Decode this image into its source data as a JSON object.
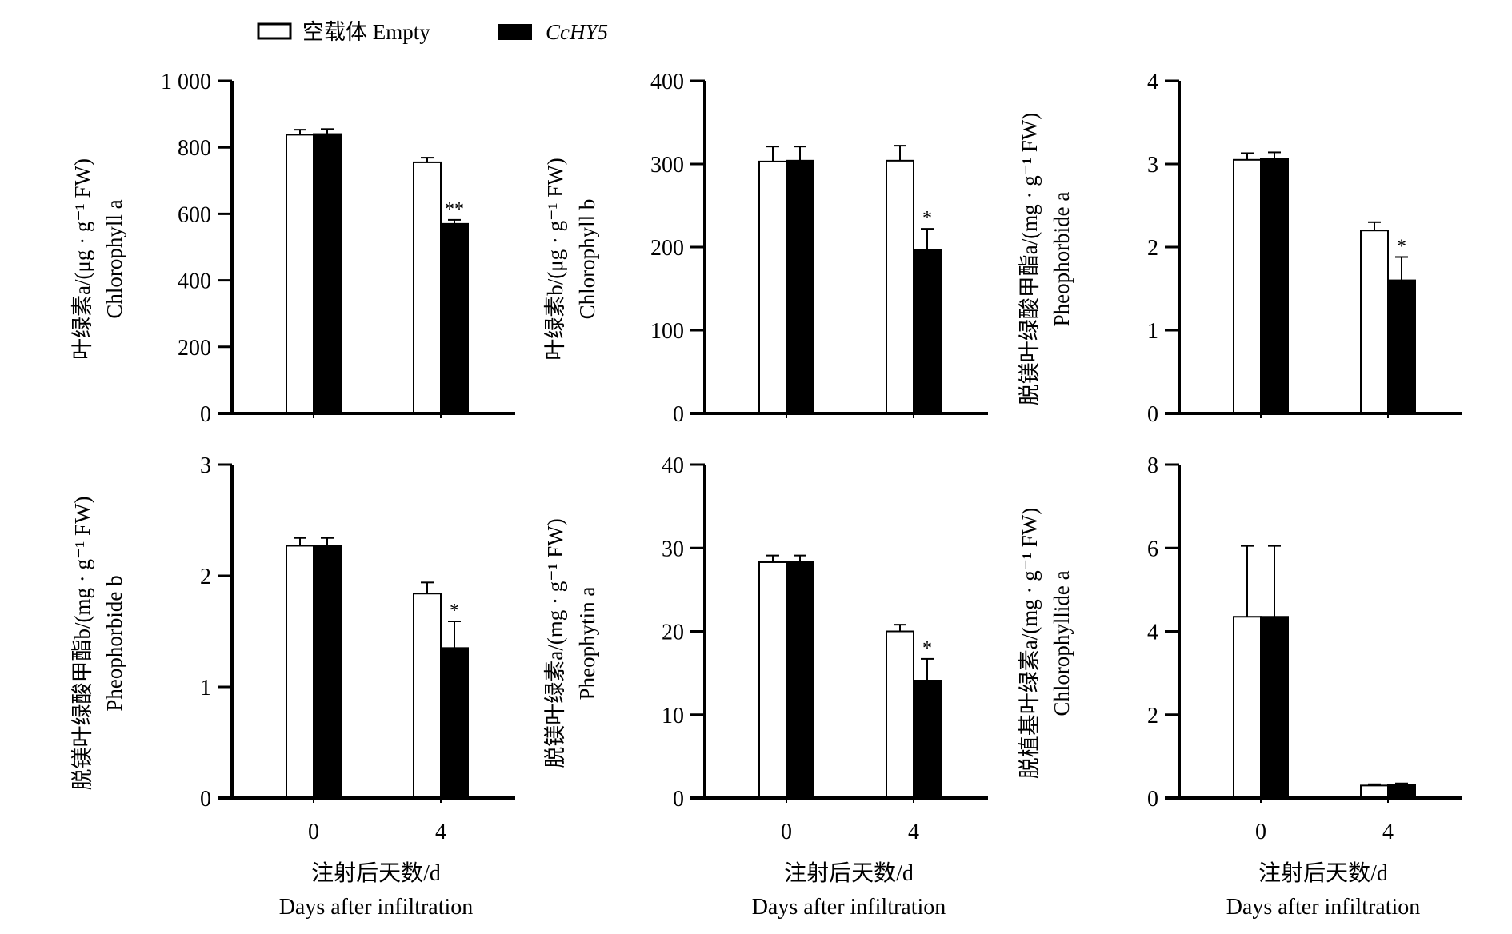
{
  "chart_data": {
    "type": "bar",
    "legend": {
      "placement": "top",
      "entries": [
        {
          "name": "空载体 Empty",
          "color": "#ffffff"
        },
        {
          "name": "CcHY5",
          "color": "#000000"
        }
      ]
    },
    "categories": [
      "0",
      "4"
    ],
    "xlabel_cn": "注射后天数/d",
    "xlabel_en": "Days after infiltration",
    "panels": [
      {
        "ylabel_cn": "叶绿素a/(μg · g⁻¹ FW)",
        "ylabel_en": "Chlorophyll a",
        "ylim": [
          0,
          1000
        ],
        "ticks": [
          0,
          200,
          400,
          600,
          800,
          1000
        ],
        "tick_labels": [
          "0",
          "200",
          "400",
          "600",
          "800",
          "1 000"
        ],
        "series": [
          {
            "name": "Empty",
            "values": [
              838,
              755
            ],
            "errors": [
              15,
              14
            ]
          },
          {
            "name": "CcHY5",
            "values": [
              840,
              570
            ],
            "errors": [
              15,
              12
            ]
          }
        ],
        "significance": [
          "",
          "**"
        ],
        "show_xlabels": false
      },
      {
        "ylabel_cn": "叶绿素b/(μg · g⁻¹ FW)",
        "ylabel_en": "Chlorophyll b",
        "ylim": [
          0,
          400
        ],
        "ticks": [
          0,
          100,
          200,
          300,
          400
        ],
        "tick_labels": [
          "0",
          "100",
          "200",
          "300",
          "400"
        ],
        "series": [
          {
            "name": "Empty",
            "values": [
              303,
              304
            ],
            "errors": [
              18,
              18
            ]
          },
          {
            "name": "CcHY5",
            "values": [
              304,
              197
            ],
            "errors": [
              17,
              25
            ]
          }
        ],
        "significance": [
          "",
          "*"
        ],
        "show_xlabels": false
      },
      {
        "ylabel_cn": "脱镁叶绿酸甲酯a/(mg · g⁻¹ FW)",
        "ylabel_en": "Pheophorbide a",
        "ylim": [
          0,
          4
        ],
        "ticks": [
          0,
          1,
          2,
          3,
          4
        ],
        "tick_labels": [
          "0",
          "1",
          "2",
          "3",
          "4"
        ],
        "series": [
          {
            "name": "Empty",
            "values": [
              3.05,
              2.2
            ],
            "errors": [
              0.08,
              0.1
            ]
          },
          {
            "name": "CcHY5",
            "values": [
              3.06,
              1.6
            ],
            "errors": [
              0.08,
              0.28
            ]
          }
        ],
        "significance": [
          "",
          "*"
        ],
        "show_xlabels": false
      },
      {
        "ylabel_cn": "脱镁叶绿酸甲酯b/(mg · g⁻¹ FW)",
        "ylabel_en": "Pheophorbide b",
        "ylim": [
          0,
          3
        ],
        "ticks": [
          0,
          1,
          2,
          3
        ],
        "tick_labels": [
          "0",
          "1",
          "2",
          "3"
        ],
        "series": [
          {
            "name": "Empty",
            "values": [
              2.27,
              1.84
            ],
            "errors": [
              0.07,
              0.1
            ]
          },
          {
            "name": "CcHY5",
            "values": [
              2.27,
              1.35
            ],
            "errors": [
              0.07,
              0.24
            ]
          }
        ],
        "significance": [
          "",
          "*"
        ],
        "show_xlabels": true
      },
      {
        "ylabel_cn": "脱镁叶绿素a/(mg · g⁻¹ FW)",
        "ylabel_en": "Pheophytin a",
        "ylim": [
          0,
          40
        ],
        "ticks": [
          0,
          10,
          20,
          30,
          40
        ],
        "tick_labels": [
          "0",
          "10",
          "20",
          "30",
          "40"
        ],
        "series": [
          {
            "name": "Empty",
            "values": [
              28.3,
              20.0
            ],
            "errors": [
              0.8,
              0.8
            ]
          },
          {
            "name": "CcHY5",
            "values": [
              28.3,
              14.1
            ],
            "errors": [
              0.8,
              2.6
            ]
          }
        ],
        "significance": [
          "",
          "*"
        ],
        "show_xlabels": true
      },
      {
        "ylabel_cn": "脱植基叶绿素a/(mg · g⁻¹ FW)",
        "ylabel_en": "Chlorophyllide a",
        "ylim": [
          0,
          8
        ],
        "ticks": [
          0,
          2,
          4,
          6,
          8
        ],
        "tick_labels": [
          "0",
          "2",
          "4",
          "6",
          "8"
        ],
        "series": [
          {
            "name": "Empty",
            "values": [
              4.35,
              0.3
            ],
            "errors": [
              1.7,
              0.03
            ]
          },
          {
            "name": "CcHY5",
            "values": [
              4.35,
              0.32
            ],
            "errors": [
              1.7,
              0.03
            ]
          }
        ],
        "significance": [
          "",
          ""
        ],
        "show_xlabels": true
      }
    ]
  }
}
